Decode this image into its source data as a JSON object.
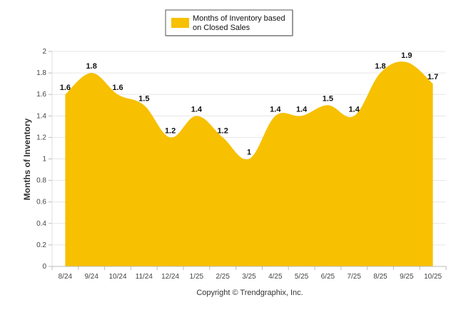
{
  "chart_data": {
    "type": "area",
    "categories": [
      "8/24",
      "9/24",
      "10/24",
      "11/24",
      "12/24",
      "1/25",
      "2/25",
      "3/25",
      "4/25",
      "5/25",
      "6/25",
      "7/25",
      "8/25",
      "9/25",
      "10/25"
    ],
    "series": [
      {
        "name": "Months of Inventory based on Closed Sales",
        "values": [
          1.6,
          1.8,
          1.6,
          1.5,
          1.2,
          1.4,
          1.2,
          1,
          1.4,
          1.4,
          1.5,
          1.4,
          1.8,
          1.9,
          1.7
        ],
        "color": "#F7C000"
      }
    ],
    "data_labels": [
      "1.6",
      "1.8",
      "1.6",
      "1.5",
      "1.2",
      "1.4",
      "1.2",
      "1",
      "1.4",
      "1.4",
      "1.5",
      "1.4",
      "1.8",
      "1.9",
      "1.7"
    ],
    "ylabel": "Months of Inventory",
    "ylim": [
      0,
      2
    ],
    "yticks": [
      "0",
      "0.2",
      "0.4",
      "0.6",
      "0.8",
      "1",
      "1.2",
      "1.4",
      "1.6",
      "1.8",
      "2"
    ],
    "grid": true,
    "legend": {
      "position": "top-center",
      "label_line1": "Months of Inventory based",
      "label_line2": "on Closed Sales"
    },
    "credit": "Copyright © Trendgraphix, Inc."
  }
}
